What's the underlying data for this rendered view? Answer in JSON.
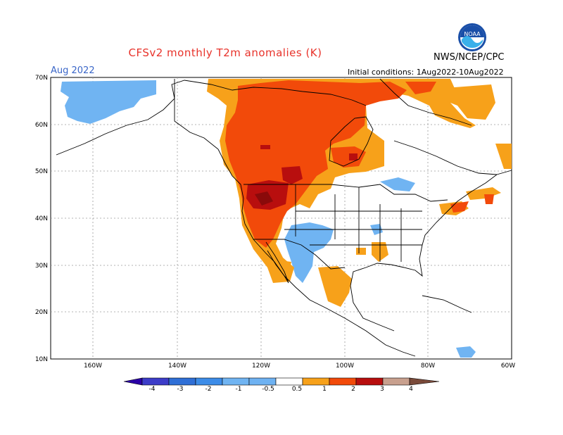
{
  "header": {
    "title": "CFSv2 monthly T2m anomalies (K)",
    "month_label": "Aug 2022",
    "org_label": "NWS/NCEP/CPC",
    "init_conditions": "Initial conditions: 1Aug2022-10Aug2022",
    "logo_text": "NOAA"
  },
  "map": {
    "lat_labels": [
      "70N",
      "60N",
      "50N",
      "40N",
      "30N",
      "20N",
      "10N"
    ],
    "lon_labels": [
      "160W",
      "140W",
      "120W",
      "100W",
      "80W",
      "60W"
    ]
  },
  "legend": {
    "tick_labels": [
      "-4",
      "-3",
      "-2",
      "-1",
      "-0.5",
      "0.5",
      "1",
      "2",
      "3",
      "4"
    ],
    "colors": [
      "#2a00a6",
      "#3c3cc8",
      "#2f6fd6",
      "#3c8ce8",
      "#6eb2f2",
      "#ffffff",
      "#f7a11a",
      "#f24a0a",
      "#c40a0a",
      "#8c0606",
      "#c8a08e",
      "#7a4a3a"
    ]
  },
  "colors": {
    "cold_light": "#70b4f2",
    "warm_orange": "#f7a11a",
    "warm_red": "#f24a0a",
    "warm_darkred": "#b80e0e",
    "warm_maroon": "#8a0a0a"
  }
}
